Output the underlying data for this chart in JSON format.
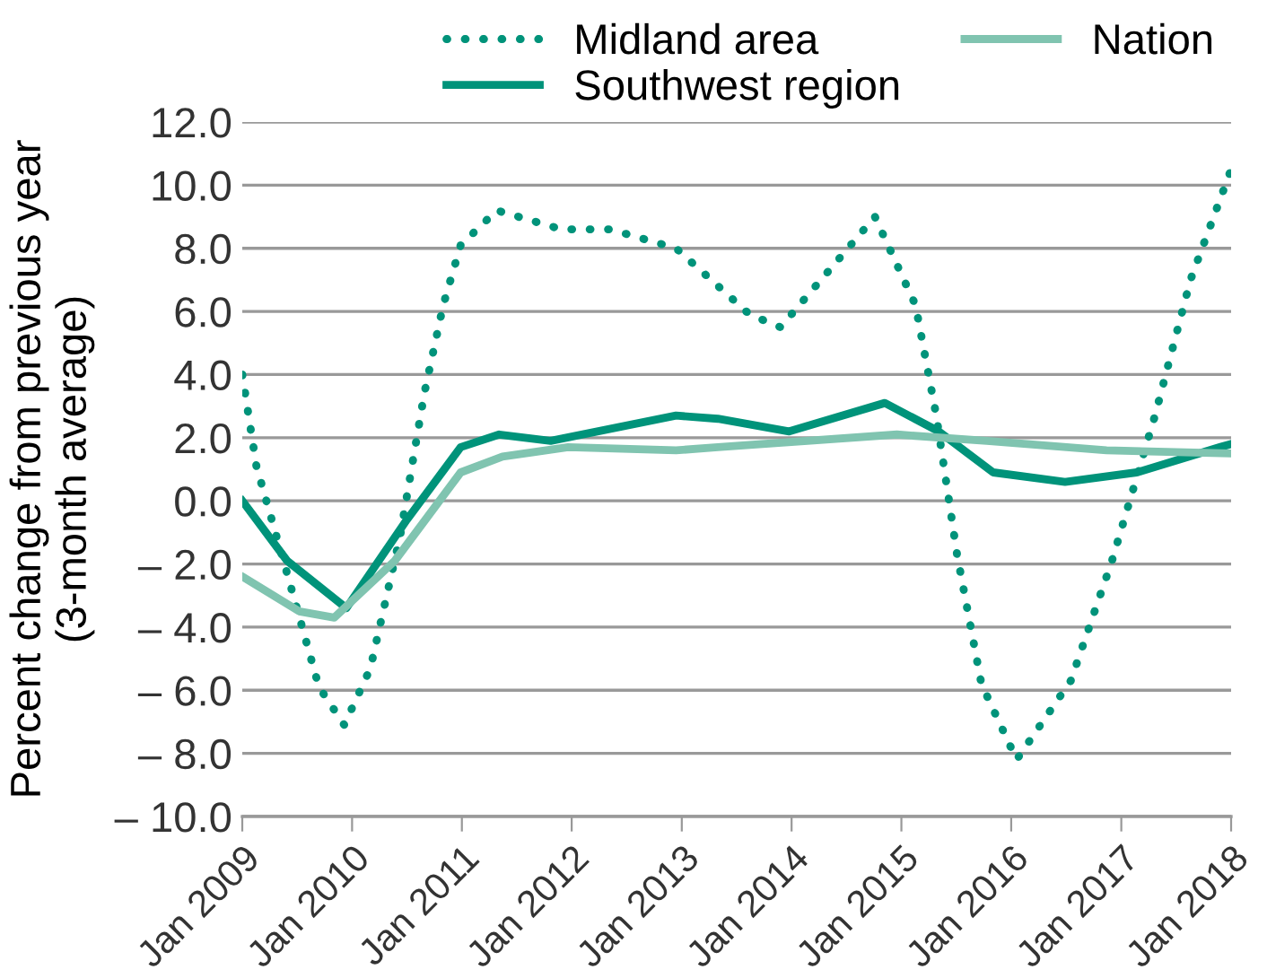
{
  "chart_data": {
    "type": "line",
    "ylabel": "Percent change from previous year\n(3-month average)",
    "xlim": [
      "2009-01-01",
      "2018-01-01"
    ],
    "xticks": [
      {
        "value": "2009-01-01",
        "label": "Jan 2009"
      },
      {
        "value": "2010-01-01",
        "label": "Jan 2010"
      },
      {
        "value": "2011-01-01",
        "label": "Jan 2011"
      },
      {
        "value": "2012-01-01",
        "label": "Jan 2012"
      },
      {
        "value": "2013-01-01",
        "label": "Jan 2013"
      },
      {
        "value": "2014-01-01",
        "label": "Jan 2014"
      },
      {
        "value": "2015-01-01",
        "label": "Jan 2015"
      },
      {
        "value": "2016-01-01",
        "label": "Jan 2016"
      },
      {
        "value": "2017-01-01",
        "label": "Jan 2017"
      },
      {
        "value": "2018-01-01",
        "label": "Jan 2018"
      }
    ],
    "ylim": [
      -10,
      12
    ],
    "yticks": [
      {
        "value": 12,
        "label": "12.0"
      },
      {
        "value": 10,
        "label": "10.0"
      },
      {
        "value": 8,
        "label": "8.0"
      },
      {
        "value": 6,
        "label": "6.0"
      },
      {
        "value": 4,
        "label": "4.0"
      },
      {
        "value": 2,
        "label": "2.0"
      },
      {
        "value": 0,
        "label": "0.0"
      },
      {
        "value": -2,
        "label": "– 2.0"
      },
      {
        "value": -4,
        "label": "– 4.0"
      },
      {
        "value": -6,
        "label": "– 6.0"
      },
      {
        "value": -8,
        "label": "– 8.0"
      },
      {
        "value": -10,
        "label": "– 10.0"
      }
    ],
    "grid": "y",
    "legend": "top right",
    "series": [
      {
        "name": "Midland area",
        "color": "#00937a",
        "line_style": "dotted",
        "x": [
          "2009-01-01",
          "2009-02-17",
          "2009-05-30",
          "2009-09-13",
          "2009-12-06",
          "2010-03-03",
          "2010-06-10",
          "2010-08-29",
          "2010-10-31",
          "2010-12-28",
          "2011-04-27",
          "2011-11-28",
          "2012-05-08",
          "2012-12-13",
          "2013-08-15",
          "2013-11-25",
          "2014-10-05",
          "2015-02-17",
          "2015-04-27",
          "2015-07-05",
          "2015-09-24",
          "2016-01-19",
          "2016-07-17",
          "2016-12-01",
          "2017-04-23",
          "2017-08-19",
          "2018-01-01"
        ],
        "values": [
          4.0,
          1.1,
          -2.3,
          -5.9,
          -7.1,
          -5.3,
          -1.1,
          3.4,
          6.2,
          8.1,
          9.2,
          8.6,
          8.6,
          8.0,
          5.9,
          5.5,
          9.0,
          6.2,
          2.7,
          -1.7,
          -5.8,
          -8.2,
          -5.7,
          -1.9,
          2.7,
          7.0,
          10.5
        ]
      },
      {
        "name": "Southwest region",
        "color": "#00937a",
        "line_style": "solid",
        "x": [
          "2009-01-01",
          "2009-05-30",
          "2009-12-13",
          "2010-07-02",
          "2010-12-28",
          "2011-05-05",
          "2011-10-23",
          "2012-12-13",
          "2013-05-01",
          "2013-12-24",
          "2014-11-07",
          "2015-05-05",
          "2015-11-02",
          "2016-06-28",
          "2017-02-21",
          "2017-11-25",
          "2018-01-01"
        ],
        "values": [
          0.0,
          -1.9,
          -3.4,
          -0.6,
          1.7,
          2.1,
          1.9,
          2.7,
          2.6,
          2.2,
          3.1,
          2.2,
          0.9,
          0.6,
          0.9,
          1.7,
          1.8
        ]
      },
      {
        "name": "Nation",
        "color": "#80c4b0",
        "line_style": "solid",
        "x": [
          "2009-01-01",
          "2009-07-09",
          "2009-11-03",
          "2010-05-23",
          "2010-12-28",
          "2011-05-16",
          "2011-12-20",
          "2012-12-13",
          "2013-05-01",
          "2014-12-17",
          "2015-10-12",
          "2016-11-13",
          "2018-01-01"
        ],
        "values": [
          -2.4,
          -3.5,
          -3.7,
          -1.9,
          0.9,
          1.4,
          1.7,
          1.6,
          1.7,
          2.1,
          1.9,
          1.6,
          1.5
        ]
      }
    ]
  }
}
